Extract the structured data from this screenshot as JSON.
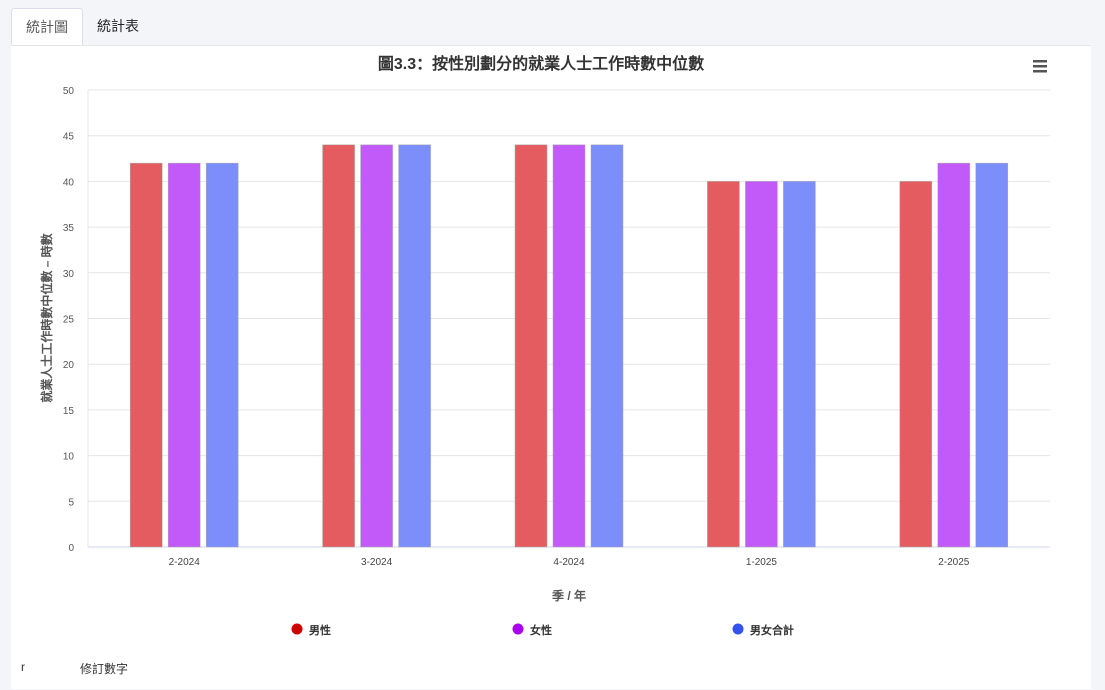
{
  "tabs": [
    {
      "label": "統計圖"
    },
    {
      "label": "統計表"
    }
  ],
  "menu_icon": "hamburger-menu-icon",
  "footnote": {
    "symbol": "r",
    "text": "修訂數字"
  },
  "chart_data": {
    "type": "bar",
    "title": "圖3.3：按性別劃分的就業人士工作時數中位數",
    "xlabel": "季 / 年",
    "ylabel": "就業人士工作時數中位數 – 時數",
    "categories": [
      "2-2024",
      "3-2024",
      "4-2024",
      "1-2025",
      "2-2025"
    ],
    "ylim": [
      0,
      50
    ],
    "yticks": [
      0,
      5,
      10,
      15,
      20,
      25,
      30,
      35,
      40,
      45,
      50
    ],
    "grid": true,
    "legend_placement": "bottom-center",
    "series": [
      {
        "name": "男性",
        "values": [
          42,
          44,
          44,
          40,
          40
        ],
        "color": "#e45c5f",
        "legend_color": "#cc0000"
      },
      {
        "name": "女性",
        "values": [
          42,
          44,
          44,
          40,
          42
        ],
        "color": "#c25afa",
        "legend_color": "#aa00ee"
      },
      {
        "name": "男女合計",
        "values": [
          42,
          44,
          44,
          40,
          42
        ],
        "color": "#7b8ef9",
        "legend_color": "#3352ee"
      }
    ]
  }
}
